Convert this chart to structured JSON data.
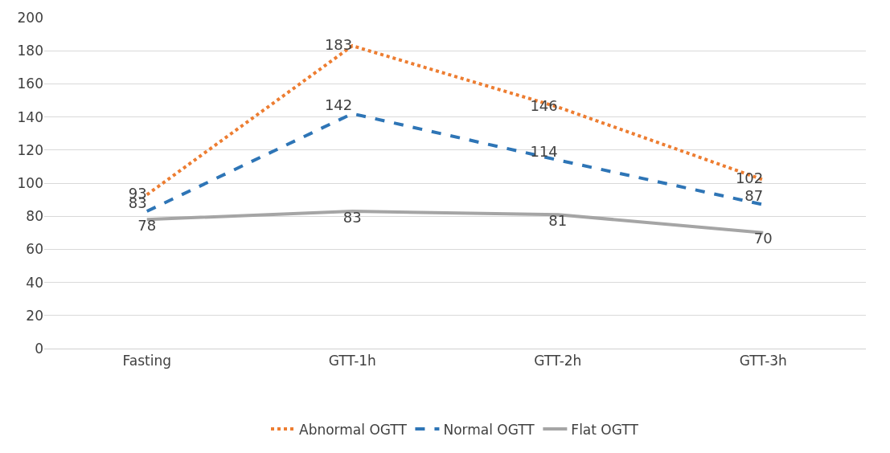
{
  "chart_data": {
    "type": "line",
    "categories": [
      "Fasting",
      "GTT-1h",
      "GTT-2h",
      "GTT-3h"
    ],
    "series": [
      {
        "name": "Abnormal OGTT",
        "color": "#ed7d31",
        "line_style": "dotted",
        "values": [
          93,
          183,
          146,
          102
        ]
      },
      {
        "name": "Normal OGTT",
        "color": "#2e75b6",
        "line_style": "dashed",
        "values": [
          83,
          142,
          114,
          87
        ]
      },
      {
        "name": "Flat OGTT",
        "color": "#a5a5a5",
        "line_style": "solid",
        "values": [
          78,
          83,
          81,
          70
        ]
      }
    ],
    "ylim": [
      0,
      200
    ],
    "yticks": [
      0,
      20,
      40,
      60,
      80,
      100,
      120,
      140,
      160,
      180,
      200
    ],
    "grid": "y",
    "legend": "bottom",
    "data_labels": true,
    "marker": "none"
  }
}
